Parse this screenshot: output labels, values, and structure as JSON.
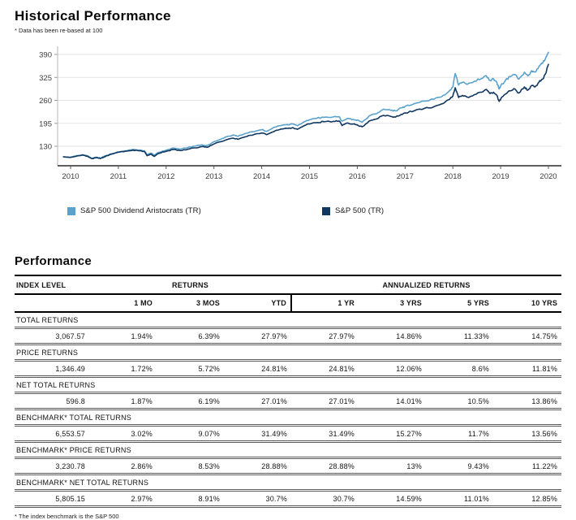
{
  "page": {
    "title": "Historical Performance",
    "rebase_note": "* Data has been re-based at 100"
  },
  "chart_data": {
    "type": "line",
    "title": "Historical Performance",
    "note": "* Data has been re-based at 100",
    "xlabel": "",
    "ylabel": "",
    "x_ticks": [
      "2010",
      "2011",
      "2012",
      "2013",
      "2014",
      "2015",
      "2016",
      "2017",
      "2018",
      "2019",
      "2020"
    ],
    "y_ticks": [
      130,
      195,
      260,
      325,
      390
    ],
    "xlim": [
      2009.85,
      2020.25
    ],
    "ylim": [
      75,
      440
    ],
    "grid": "horizontal",
    "legend_position": "bottom",
    "series": [
      {
        "name": "S&P 500 Dividend Aristocrats (TR)",
        "color": "#5aa2cb",
        "points": [
          [
            2009.85,
            100
          ],
          [
            2010.0,
            99
          ],
          [
            2010.1,
            102
          ],
          [
            2010.25,
            106
          ],
          [
            2010.35,
            103
          ],
          [
            2010.45,
            96
          ],
          [
            2010.55,
            99
          ],
          [
            2010.62,
            96
          ],
          [
            2010.75,
            104
          ],
          [
            2010.9,
            110
          ],
          [
            2011.0,
            114
          ],
          [
            2011.15,
            117
          ],
          [
            2011.3,
            121
          ],
          [
            2011.45,
            119
          ],
          [
            2011.55,
            117
          ],
          [
            2011.6,
            106
          ],
          [
            2011.68,
            111
          ],
          [
            2011.75,
            105
          ],
          [
            2011.85,
            113
          ],
          [
            2012.0,
            119
          ],
          [
            2012.15,
            125
          ],
          [
            2012.3,
            122
          ],
          [
            2012.45,
            126
          ],
          [
            2012.6,
            130
          ],
          [
            2012.75,
            134
          ],
          [
            2012.85,
            132
          ],
          [
            2013.0,
            143
          ],
          [
            2013.2,
            153
          ],
          [
            2013.4,
            162
          ],
          [
            2013.5,
            158
          ],
          [
            2013.65,
            166
          ],
          [
            2013.8,
            171
          ],
          [
            2014.0,
            177
          ],
          [
            2014.1,
            172
          ],
          [
            2014.3,
            185
          ],
          [
            2014.5,
            191
          ],
          [
            2014.65,
            193
          ],
          [
            2014.75,
            188
          ],
          [
            2014.9,
            200
          ],
          [
            2015.0,
            205
          ],
          [
            2015.15,
            209
          ],
          [
            2015.3,
            212
          ],
          [
            2015.5,
            213
          ],
          [
            2015.62,
            214
          ],
          [
            2015.68,
            201
          ],
          [
            2015.8,
            209
          ],
          [
            2015.92,
            206
          ],
          [
            2016.0,
            204
          ],
          [
            2016.1,
            198
          ],
          [
            2016.25,
            216
          ],
          [
            2016.4,
            222
          ],
          [
            2016.55,
            235
          ],
          [
            2016.7,
            232
          ],
          [
            2016.8,
            230
          ],
          [
            2016.92,
            239
          ],
          [
            2017.0,
            243
          ],
          [
            2017.2,
            251
          ],
          [
            2017.4,
            258
          ],
          [
            2017.6,
            263
          ],
          [
            2017.8,
            274
          ],
          [
            2017.92,
            286
          ],
          [
            2018.0,
            298
          ],
          [
            2018.05,
            336
          ],
          [
            2018.12,
            303
          ],
          [
            2018.2,
            311
          ],
          [
            2018.3,
            305
          ],
          [
            2018.45,
            314
          ],
          [
            2018.6,
            322
          ],
          [
            2018.7,
            330
          ],
          [
            2018.78,
            316
          ],
          [
            2018.85,
            321
          ],
          [
            2018.92,
            311
          ],
          [
            2018.97,
            292
          ],
          [
            2019.0,
            301
          ],
          [
            2019.1,
            317
          ],
          [
            2019.2,
            327
          ],
          [
            2019.3,
            333
          ],
          [
            2019.38,
            320
          ],
          [
            2019.5,
            340
          ],
          [
            2019.57,
            329
          ],
          [
            2019.65,
            344
          ],
          [
            2019.72,
            340
          ],
          [
            2019.8,
            355
          ],
          [
            2019.88,
            365
          ],
          [
            2019.95,
            383
          ],
          [
            2020.0,
            396
          ]
        ]
      },
      {
        "name": "S&P 500 (TR)",
        "color": "#10375f",
        "points": [
          [
            2009.85,
            100
          ],
          [
            2010.0,
            98.5
          ],
          [
            2010.1,
            101
          ],
          [
            2010.25,
            105
          ],
          [
            2010.35,
            102
          ],
          [
            2010.45,
            95
          ],
          [
            2010.55,
            98
          ],
          [
            2010.62,
            95
          ],
          [
            2010.75,
            103
          ],
          [
            2010.9,
            109
          ],
          [
            2011.0,
            113
          ],
          [
            2011.15,
            116
          ],
          [
            2011.3,
            119
          ],
          [
            2011.45,
            117
          ],
          [
            2011.55,
            114.5
          ],
          [
            2011.6,
            103
          ],
          [
            2011.68,
            108
          ],
          [
            2011.75,
            101.5
          ],
          [
            2011.85,
            110
          ],
          [
            2012.0,
            115.5
          ],
          [
            2012.15,
            121
          ],
          [
            2012.3,
            117.5
          ],
          [
            2012.45,
            121.5
          ],
          [
            2012.6,
            125.5
          ],
          [
            2012.75,
            129
          ],
          [
            2012.85,
            127
          ],
          [
            2013.0,
            136.5
          ],
          [
            2013.2,
            145
          ],
          [
            2013.4,
            153
          ],
          [
            2013.5,
            149.5
          ],
          [
            2013.65,
            156.5
          ],
          [
            2013.8,
            161
          ],
          [
            2014.0,
            167.5
          ],
          [
            2014.1,
            163
          ],
          [
            2014.3,
            175
          ],
          [
            2014.5,
            181
          ],
          [
            2014.65,
            183
          ],
          [
            2014.75,
            178
          ],
          [
            2014.9,
            189
          ],
          [
            2015.0,
            193
          ],
          [
            2015.15,
            197
          ],
          [
            2015.3,
            199.5
          ],
          [
            2015.5,
            200.5
          ],
          [
            2015.62,
            201.5
          ],
          [
            2015.68,
            188.5
          ],
          [
            2015.8,
            196
          ],
          [
            2015.92,
            193
          ],
          [
            2016.0,
            190.5
          ],
          [
            2016.1,
            185
          ],
          [
            2016.25,
            201.5
          ],
          [
            2016.4,
            207
          ],
          [
            2016.55,
            217.5
          ],
          [
            2016.7,
            214.5
          ],
          [
            2016.8,
            212.5
          ],
          [
            2016.92,
            220.5
          ],
          [
            2017.0,
            224
          ],
          [
            2017.2,
            231
          ],
          [
            2017.4,
            237
          ],
          [
            2017.6,
            241.5
          ],
          [
            2017.8,
            251
          ],
          [
            2017.92,
            262
          ],
          [
            2018.0,
            272
          ],
          [
            2018.05,
            296
          ],
          [
            2018.12,
            268
          ],
          [
            2018.2,
            274
          ],
          [
            2018.3,
            269
          ],
          [
            2018.45,
            276
          ],
          [
            2018.6,
            283
          ],
          [
            2018.7,
            291
          ],
          [
            2018.78,
            279
          ],
          [
            2018.85,
            283
          ],
          [
            2018.92,
            274
          ],
          [
            2018.97,
            257
          ],
          [
            2019.0,
            264
          ],
          [
            2019.1,
            278
          ],
          [
            2019.2,
            287
          ],
          [
            2019.3,
            292
          ],
          [
            2019.38,
            281
          ],
          [
            2019.5,
            298
          ],
          [
            2019.57,
            289
          ],
          [
            2019.65,
            302
          ],
          [
            2019.72,
            298
          ],
          [
            2019.8,
            311
          ],
          [
            2019.88,
            320
          ],
          [
            2019.95,
            338
          ],
          [
            2020.0,
            362
          ]
        ]
      }
    ]
  },
  "performance": {
    "heading": "Performance",
    "col_groups": {
      "index_level": "INDEX LEVEL",
      "returns": "RETURNS",
      "annualized": "ANNUALIZED RETURNS"
    },
    "columns": [
      "1 MO",
      "3 MOS",
      "YTD",
      "1 YR",
      "3 YRS",
      "5 YRS",
      "10 YRS"
    ],
    "rows": [
      {
        "label": "TOTAL RETURNS",
        "index_level": "3,067.57",
        "values": [
          "1.94%",
          "6.39%",
          "27.97%",
          "27.97%",
          "14.86%",
          "11.33%",
          "14.75%"
        ]
      },
      {
        "label": "PRICE RETURNS",
        "index_level": "1,346.49",
        "values": [
          "1.72%",
          "5.72%",
          "24.81%",
          "24.81%",
          "12.06%",
          "8.6%",
          "11.81%"
        ]
      },
      {
        "label": "NET TOTAL RETURNS",
        "index_level": "596.8",
        "values": [
          "1.87%",
          "6.19%",
          "27.01%",
          "27.01%",
          "14.01%",
          "10.5%",
          "13.86%"
        ]
      },
      {
        "label": "BENCHMARK* TOTAL RETURNS",
        "index_level": "6,553.57",
        "values": [
          "3.02%",
          "9.07%",
          "31.49%",
          "31.49%",
          "15.27%",
          "11.7%",
          "13.56%"
        ]
      },
      {
        "label": "BENCHMARK* PRICE RETURNS",
        "index_level": "3,230.78",
        "values": [
          "2.86%",
          "8.53%",
          "28.88%",
          "28.88%",
          "13%",
          "9.43%",
          "11.22%"
        ]
      },
      {
        "label": "BENCHMARK* NET TOTAL RETURNS",
        "index_level": "5,805.15",
        "values": [
          "2.97%",
          "8.91%",
          "30.7%",
          "30.7%",
          "14.59%",
          "11.01%",
          "12.85%"
        ]
      }
    ],
    "footnote": "* The index benchmark is the S&P 500"
  }
}
